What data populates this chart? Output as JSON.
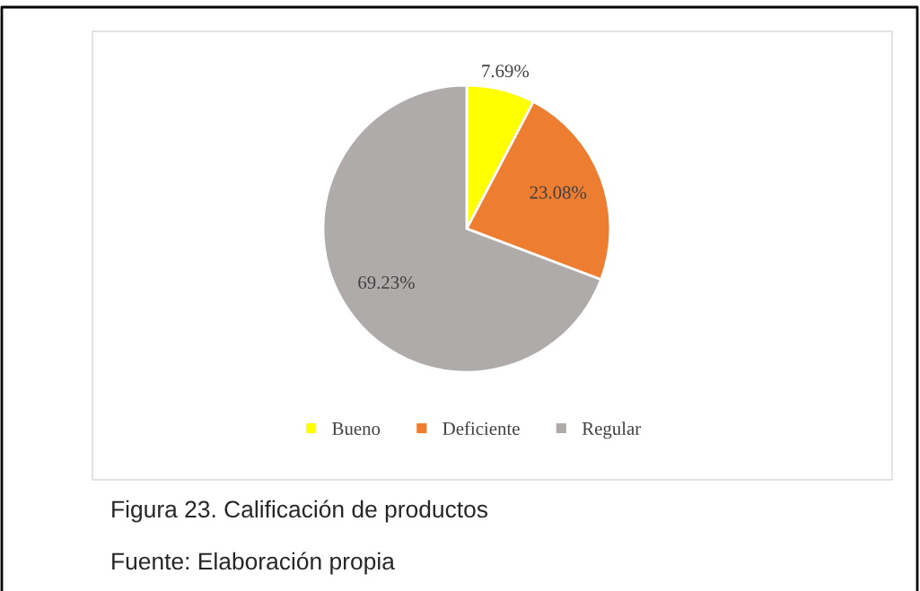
{
  "chart_data": {
    "type": "pie",
    "categories": [
      "Bueno",
      "Deficiente",
      "Regular"
    ],
    "values": [
      7.69,
      23.08,
      69.23
    ],
    "colors": [
      "#ffff00",
      "#ed7d31",
      "#afabab"
    ],
    "value_labels": [
      "7.69%",
      "23.08%",
      "69.23%"
    ],
    "legend": "bottom",
    "annotations": [
      "Figura 23. Calificación de productos",
      "Fuente: Elaboración propia"
    ]
  }
}
